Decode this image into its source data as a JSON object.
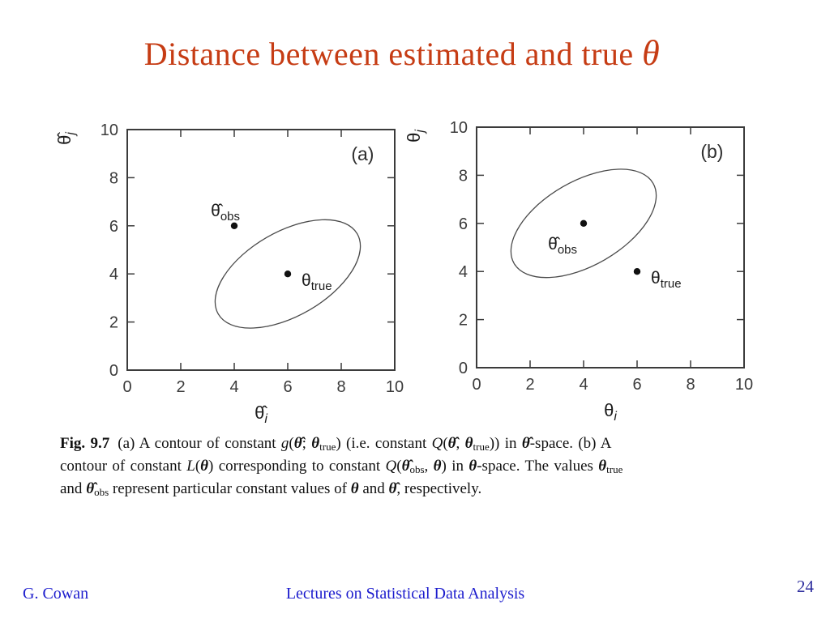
{
  "title": {
    "text": "Distance between estimated and true ",
    "symbol": "θ",
    "color": "#c63c14"
  },
  "chart_data": [
    {
      "type": "scatter",
      "panel": "(a)",
      "xlabel": {
        "base": "θ̂",
        "sub": "i"
      },
      "ylabel": {
        "base": "θ̂",
        "sub": "j"
      },
      "xlim": [
        0,
        10
      ],
      "ylim": [
        0,
        10
      ],
      "xticks": [
        0,
        2,
        4,
        6,
        8,
        10
      ],
      "yticks": [
        0,
        2,
        4,
        6,
        8,
        10
      ],
      "grid": false,
      "points": [
        {
          "x": 4,
          "y": 6,
          "label": {
            "base": "θ̂",
            "sub": "obs"
          },
          "label_pos": "above-left"
        },
        {
          "x": 6,
          "y": 4,
          "label": {
            "base": "θ",
            "sub": "true"
          },
          "label_pos": "right"
        }
      ],
      "contour": {
        "shape": "ellipse",
        "cx": 6,
        "cy": 4,
        "semi_major": 3.0,
        "semi_minor": 1.75,
        "rotation_deg": 30
      }
    },
    {
      "type": "scatter",
      "panel": "(b)",
      "xlabel": {
        "base": "θ",
        "sub": "i"
      },
      "ylabel": {
        "base": "θ",
        "sub": "j"
      },
      "xlim": [
        0,
        10
      ],
      "ylim": [
        0,
        10
      ],
      "xticks": [
        0,
        2,
        4,
        6,
        8,
        10
      ],
      "yticks": [
        0,
        2,
        4,
        6,
        8,
        10
      ],
      "grid": false,
      "points": [
        {
          "x": 4,
          "y": 6,
          "label": {
            "base": "θ̂",
            "sub": "obs"
          },
          "label_pos": "below-left"
        },
        {
          "x": 6,
          "y": 4,
          "label": {
            "base": "θ",
            "sub": "true"
          },
          "label_pos": "right"
        }
      ],
      "contour": {
        "shape": "ellipse",
        "cx": 4,
        "cy": 6,
        "semi_major": 3.0,
        "semi_minor": 1.75,
        "rotation_deg": 30
      }
    }
  ],
  "caption": {
    "lines": [
      [
        {
          "t": "Fig. 9.7",
          "c": [
            "b",
            "sp"
          ]
        },
        {
          "t": "(a) A contour of constant ",
          "c": []
        },
        {
          "t": "g",
          "c": [
            "i"
          ]
        },
        {
          "t": "(",
          "c": []
        },
        {
          "t": "θ̂",
          "c": [
            "b",
            "i"
          ]
        },
        {
          "t": "; ",
          "c": []
        },
        {
          "t": "θ",
          "c": [
            "b",
            "i"
          ]
        },
        {
          "t": "true",
          "c": [
            "sub"
          ]
        },
        {
          "t": ") (i.e. constant ",
          "c": []
        },
        {
          "t": "Q",
          "c": [
            "i"
          ]
        },
        {
          "t": "(",
          "c": []
        },
        {
          "t": "θ̂",
          "c": [
            "b",
            "i"
          ]
        },
        {
          "t": ", ",
          "c": []
        },
        {
          "t": "θ",
          "c": [
            "b",
            "i"
          ]
        },
        {
          "t": "true",
          "c": [
            "sub"
          ]
        },
        {
          "t": ")) in ",
          "c": []
        },
        {
          "t": "θ̂",
          "c": [
            "b",
            "i"
          ]
        },
        {
          "t": "-space. (b) A",
          "c": []
        }
      ],
      [
        {
          "t": "contour of constant ",
          "c": []
        },
        {
          "t": "L",
          "c": [
            "i"
          ]
        },
        {
          "t": "(",
          "c": []
        },
        {
          "t": "θ",
          "c": [
            "b",
            "i"
          ]
        },
        {
          "t": ") corresponding to constant ",
          "c": []
        },
        {
          "t": "Q",
          "c": [
            "i"
          ]
        },
        {
          "t": "(",
          "c": []
        },
        {
          "t": "θ̂",
          "c": [
            "b",
            "i"
          ]
        },
        {
          "t": "obs",
          "c": [
            "sub"
          ]
        },
        {
          "t": ", ",
          "c": []
        },
        {
          "t": "θ",
          "c": [
            "b",
            "i"
          ]
        },
        {
          "t": ") in ",
          "c": []
        },
        {
          "t": "θ",
          "c": [
            "b",
            "i"
          ]
        },
        {
          "t": "-space. The values ",
          "c": []
        },
        {
          "t": "θ",
          "c": [
            "b",
            "i"
          ]
        },
        {
          "t": "true",
          "c": [
            "sub"
          ]
        }
      ],
      [
        {
          "t": "and ",
          "c": []
        },
        {
          "t": "θ̂",
          "c": [
            "b",
            "i"
          ]
        },
        {
          "t": "obs",
          "c": [
            "sub"
          ]
        },
        {
          "t": " represent particular constant values of ",
          "c": []
        },
        {
          "t": "θ",
          "c": [
            "b",
            "i"
          ]
        },
        {
          "t": " and ",
          "c": []
        },
        {
          "t": "θ̂",
          "c": [
            "b",
            "i"
          ]
        },
        {
          "t": ", respectively.",
          "c": []
        }
      ]
    ]
  },
  "footer": {
    "author": "G. Cowan",
    "course": "Lectures on Statistical Data Analysis",
    "page": "24"
  },
  "colors": {
    "plot_ink": "#3b3b3b",
    "contour_stroke": "#4a4a4a",
    "point_fill": "#111111",
    "footer_text": "#1c1ccd",
    "page_number": "#2e2e9e",
    "background": "#ffffff"
  }
}
